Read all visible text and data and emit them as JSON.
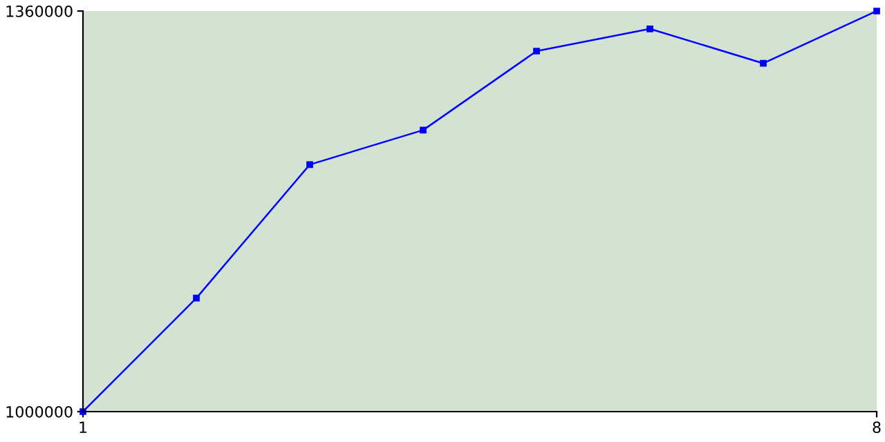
{
  "chart_data": {
    "type": "line",
    "x": [
      1,
      2,
      3,
      4,
      5,
      6,
      7,
      8
    ],
    "series": [
      {
        "color": "#0000ff",
        "values": [
          1000000,
          1102000,
          1222000,
          1253000,
          1324000,
          1344000,
          1313000,
          1360000
        ]
      }
    ],
    "xlim": [
      1,
      8
    ],
    "ylim": [
      1000000,
      1360000
    ],
    "xticks": [
      1,
      8
    ],
    "yticks": [
      1000000,
      1360000
    ],
    "grid": false,
    "legend": false,
    "marker": "square",
    "line_style": "solid"
  }
}
